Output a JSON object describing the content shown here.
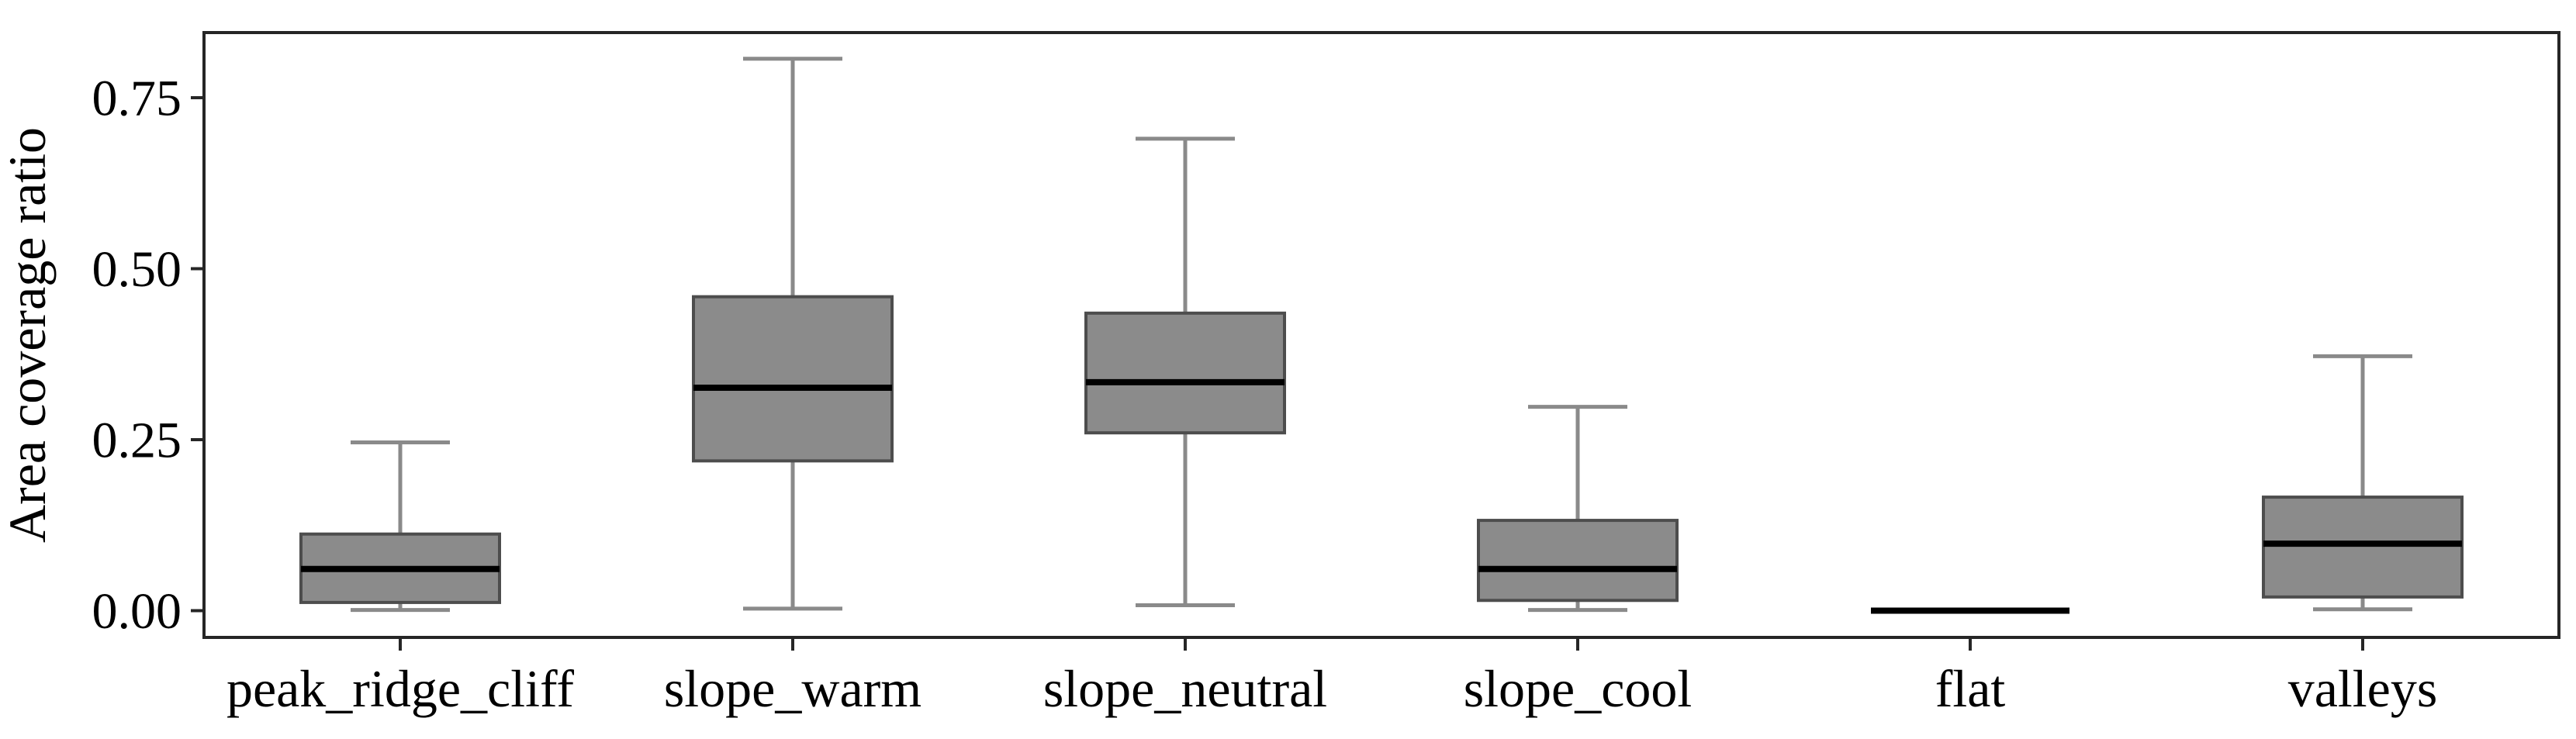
{
  "figure": {
    "kind": "boxplot-figure",
    "background": "#ffffff"
  },
  "chart_data": {
    "type": "box",
    "title": "",
    "xlabel": "",
    "ylabel": "Area coverage ratio",
    "categories": [
      "peak_ridge_cliff",
      "slope_warm",
      "slope_neutral",
      "slope_cool",
      "flat",
      "valleys"
    ],
    "yticks": [
      0.0,
      0.25,
      0.5,
      0.75
    ],
    "ytick_labels": [
      "0.00",
      "0.25",
      "0.50",
      "0.75"
    ],
    "ylim": [
      -0.041,
      0.846
    ],
    "grid": false,
    "legend": null,
    "series": [
      {
        "name": "peak_ridge_cliff",
        "whisker_low": 0.001,
        "q1": 0.012,
        "median": 0.061,
        "q3": 0.112,
        "whisker_high": 0.246
      },
      {
        "name": "slope_warm",
        "whisker_low": 0.003,
        "q1": 0.219,
        "median": 0.326,
        "q3": 0.459,
        "whisker_high": 0.807
      },
      {
        "name": "slope_neutral",
        "whisker_low": 0.008,
        "q1": 0.26,
        "median": 0.334,
        "q3": 0.435,
        "whisker_high": 0.69
      },
      {
        "name": "slope_cool",
        "whisker_low": 0.001,
        "q1": 0.015,
        "median": 0.061,
        "q3": 0.132,
        "whisker_high": 0.298
      },
      {
        "name": "flat",
        "whisker_low": 0.0,
        "q1": 0.0,
        "median": 0.0,
        "q3": 0.0,
        "whisker_high": 0.0
      },
      {
        "name": "valleys",
        "whisker_low": 0.002,
        "q1": 0.02,
        "median": 0.098,
        "q3": 0.166,
        "whisker_high": 0.372
      }
    ],
    "colors": {
      "box_fill": "#8b8b8b",
      "box_edge": "#4d4d4d",
      "whisker": "#8a8a8a",
      "median": "#000000",
      "axis": "#262626",
      "text": "#000000"
    }
  }
}
